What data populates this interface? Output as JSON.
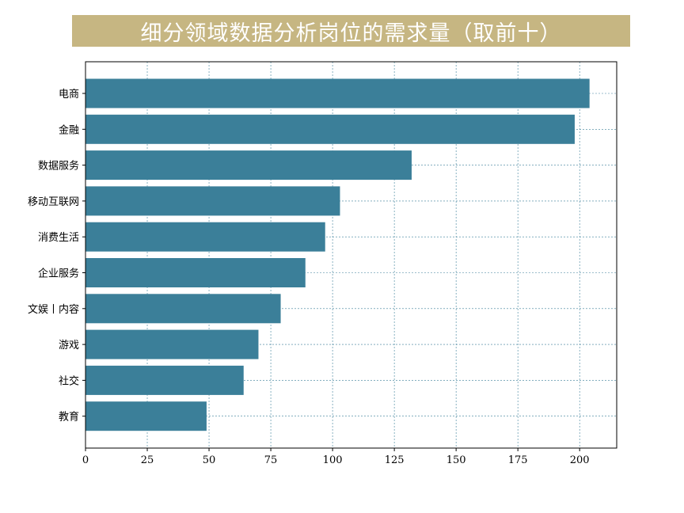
{
  "chart_data": {
    "type": "bar",
    "orientation": "horizontal",
    "title": "细分领域数据分析岗位的需求量（取前十）",
    "categories": [
      "电商",
      "金融",
      "数据服务",
      "移动互联网",
      "消费生活",
      "企业服务",
      "文娱丨内容",
      "游戏",
      "社交",
      "教育"
    ],
    "values": [
      204,
      198,
      132,
      103,
      97,
      89,
      79,
      70,
      64,
      49
    ],
    "xlim": [
      0,
      215
    ],
    "xticks": [
      "0",
      "25",
      "50",
      "75",
      "100",
      "125",
      "150",
      "175",
      "200"
    ],
    "grid": true,
    "colors": {
      "bar": "#3b7f99",
      "grid": "#3b7f99",
      "title_bg": "#c6b682"
    }
  }
}
